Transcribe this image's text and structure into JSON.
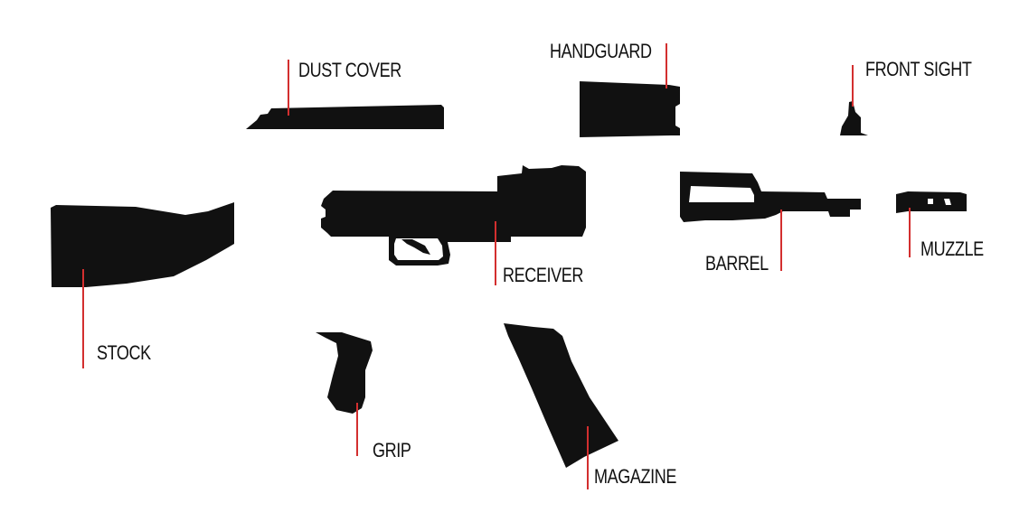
{
  "colors": {
    "silhouette": "#111111",
    "leader_line": "#d32f2f",
    "label_text": "#111111",
    "background": "#ffffff"
  },
  "parts": {
    "dust_cover": {
      "label": "DUST COVER"
    },
    "handguard": {
      "label": "HANDGUARD"
    },
    "front_sight": {
      "label": "FRONT SIGHT"
    },
    "stock": {
      "label": "STOCK"
    },
    "receiver": {
      "label": "RECEIVER"
    },
    "barrel": {
      "label": "BARREL"
    },
    "muzzle": {
      "label": "MUZZLE"
    },
    "grip": {
      "label": "GRIP"
    },
    "magazine": {
      "label": "MAGAZINE"
    }
  }
}
